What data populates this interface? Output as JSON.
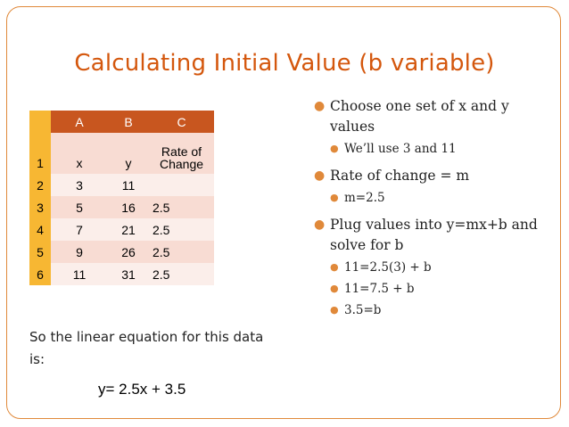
{
  "title": "Calculating Initial Value (b variable)",
  "table": {
    "columns": [
      "A",
      "B",
      "C"
    ],
    "rows": [
      {
        "num": "1",
        "a": "x",
        "b": "y",
        "c": "Rate of Change"
      },
      {
        "num": "2",
        "a": "3",
        "b": "11",
        "c": ""
      },
      {
        "num": "3",
        "a": "5",
        "b": "16",
        "c": "2.5"
      },
      {
        "num": "4",
        "a": "7",
        "b": "21",
        "c": "2.5"
      },
      {
        "num": "5",
        "a": "9",
        "b": "26",
        "c": "2.5"
      },
      {
        "num": "6",
        "a": "11",
        "b": "31",
        "c": "2.5"
      }
    ]
  },
  "bullets": {
    "b1": "Choose one set of x and y values",
    "b1_sub": "We’ll use 3 and 11",
    "b2": "Rate of change = m",
    "b2_sub": "m=2.5",
    "b3": "Plug values into y=mx+b and solve for b",
    "b3_sub1": "11=2.5(3) + b",
    "b3_sub2": "11=7.5 + b",
    "b3_sub3": "3.5=b"
  },
  "note": "So the linear equation for this data is:",
  "equation": "y= 2.5x + 3.5",
  "colors": {
    "accent": "#e0893a",
    "title": "#d4570d",
    "header": "#c8561f",
    "rowhead": "#f7b733"
  }
}
